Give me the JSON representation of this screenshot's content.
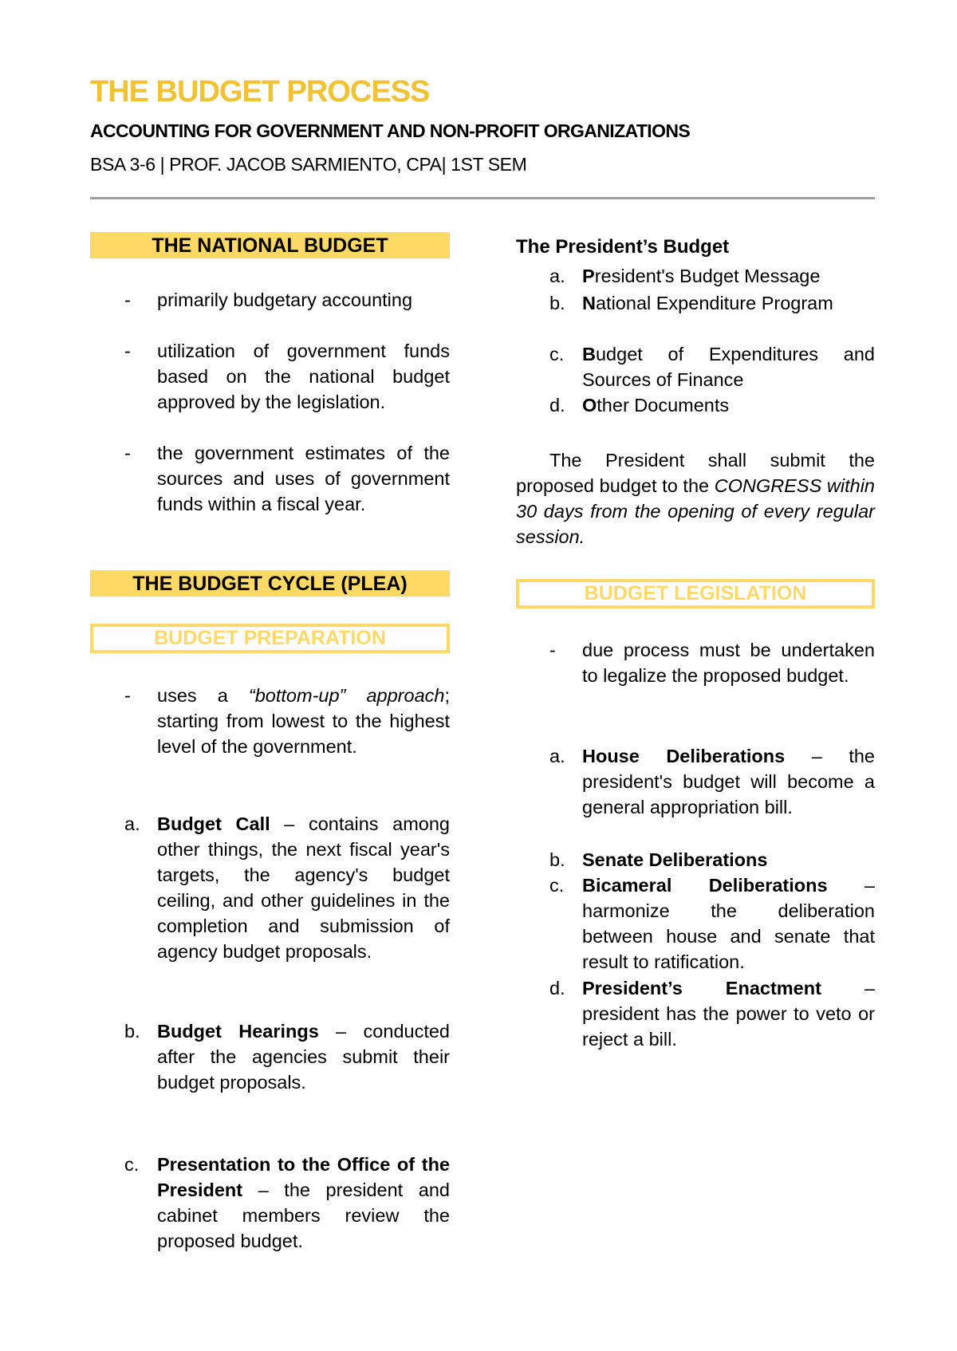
{
  "header": {
    "title": "THE BUDGET PROCESS",
    "subtitle": "ACCOUNTING FOR GOVERNMENT AND NON-PROFIT ORGANIZATIONS",
    "info": "BSA 3-6 | PROF. JACOB SARMIENTO, CPA| 1ST SEM"
  },
  "colors": {
    "accent": "#FFD966",
    "title": "#F1C232",
    "rule": "#9E9E9E"
  },
  "left": {
    "national_budget": {
      "heading": "THE NATIONAL BUDGET",
      "bullets": [
        "primarily budgetary accounting",
        "utilization of government funds based on the national budget approved by the legislation.",
        "the government estimates of the sources and uses of government funds within a fiscal year."
      ]
    },
    "cycle": {
      "heading": "THE BUDGET CYCLE (PLEA)",
      "preparation": {
        "heading": "BUDGET PREPARATION",
        "bullet": {
          "pre": "uses a ",
          "italic": "“bottom-up” approach",
          "post": "; starting from lowest to the highest level of the government."
        },
        "items": [
          {
            "mark": "a.",
            "term": "Budget Call",
            "desc": " – contains among other things, the next fiscal year's targets, the agency's budget ceiling, and other guidelines in the completion and submission of agency budget proposals."
          },
          {
            "mark": "b.",
            "term": "Budget Hearings",
            "desc": " – conducted after the agencies submit their budget proposals."
          },
          {
            "mark": "c.",
            "term": "Presentation to the Office of the President",
            "desc": " – the president and cabinet members review the proposed budget."
          }
        ]
      }
    }
  },
  "right": {
    "presidents_budget": {
      "heading": "The President’s Budget",
      "items": [
        {
          "mark": "a.",
          "first": "P",
          "rest": "resident's Budget Message"
        },
        {
          "mark": "b.",
          "first": "N",
          "rest": "ational Expenditure Program"
        },
        {
          "mark": "c.",
          "first": "B",
          "rest": "udget of Expenditures and Sources of Finance"
        },
        {
          "mark": "d.",
          "first": "O",
          "rest": "ther Documents"
        }
      ],
      "paragraph": {
        "plain": "The President shall submit the proposed budget to the ",
        "italic": "CONGRESS within 30 days from the opening of every regular session."
      }
    },
    "legislation": {
      "heading": "BUDGET LEGISLATION",
      "bullet": "due process must be undertaken to legalize the proposed budget.",
      "items": [
        {
          "mark": "a.",
          "term": "House Deliberations",
          "desc": " – the president's budget will become a general appropriation bill."
        },
        {
          "mark": "b.",
          "term": "Senate Deliberations",
          "desc": ""
        },
        {
          "mark": "c.",
          "term": "Bicameral Deliberations",
          "desc": " – harmonize the deliberation between house and senate that result to ratification."
        },
        {
          "mark": "d.",
          "term": "President’s Enactment",
          "desc": " – president has the power to veto or reject a bill."
        }
      ]
    }
  }
}
